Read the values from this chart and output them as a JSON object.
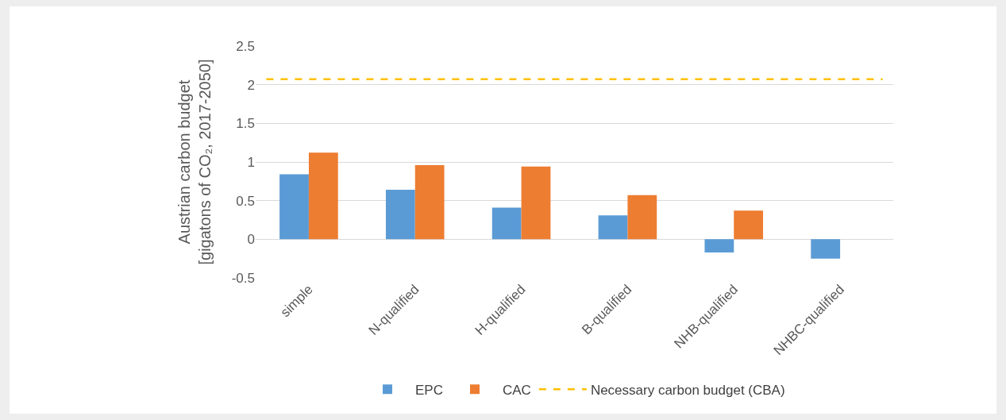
{
  "chart_data": {
    "type": "bar",
    "ylabel": "Austrian carbon budget\n[gigatons of CO₂, 2017-2050]",
    "categories": [
      "simple",
      "N-qualified",
      "H-qualified",
      "B-qualified",
      "NHB-qualified",
      "NHBC-qualified"
    ],
    "series": [
      {
        "name": "EPC",
        "color": "#5b9bd5",
        "values": [
          0.84,
          0.64,
          0.41,
          0.31,
          -0.17,
          -0.25
        ]
      },
      {
        "name": "CAC",
        "color": "#ed7d31",
        "values": [
          1.12,
          0.96,
          0.94,
          0.57,
          0.37,
          null
        ]
      }
    ],
    "ref_lines": [
      {
        "axis": "y",
        "value": 2.07,
        "label": "Necessary carbon budget (CBA)",
        "color": "#ffc000",
        "line_style": "dashed"
      }
    ],
    "ylim": [
      -0.5,
      2.5
    ],
    "yticks": [
      -0.5,
      0,
      0.5,
      1,
      1.5,
      2,
      2.5
    ],
    "grid": "y",
    "legend": "bottom"
  }
}
